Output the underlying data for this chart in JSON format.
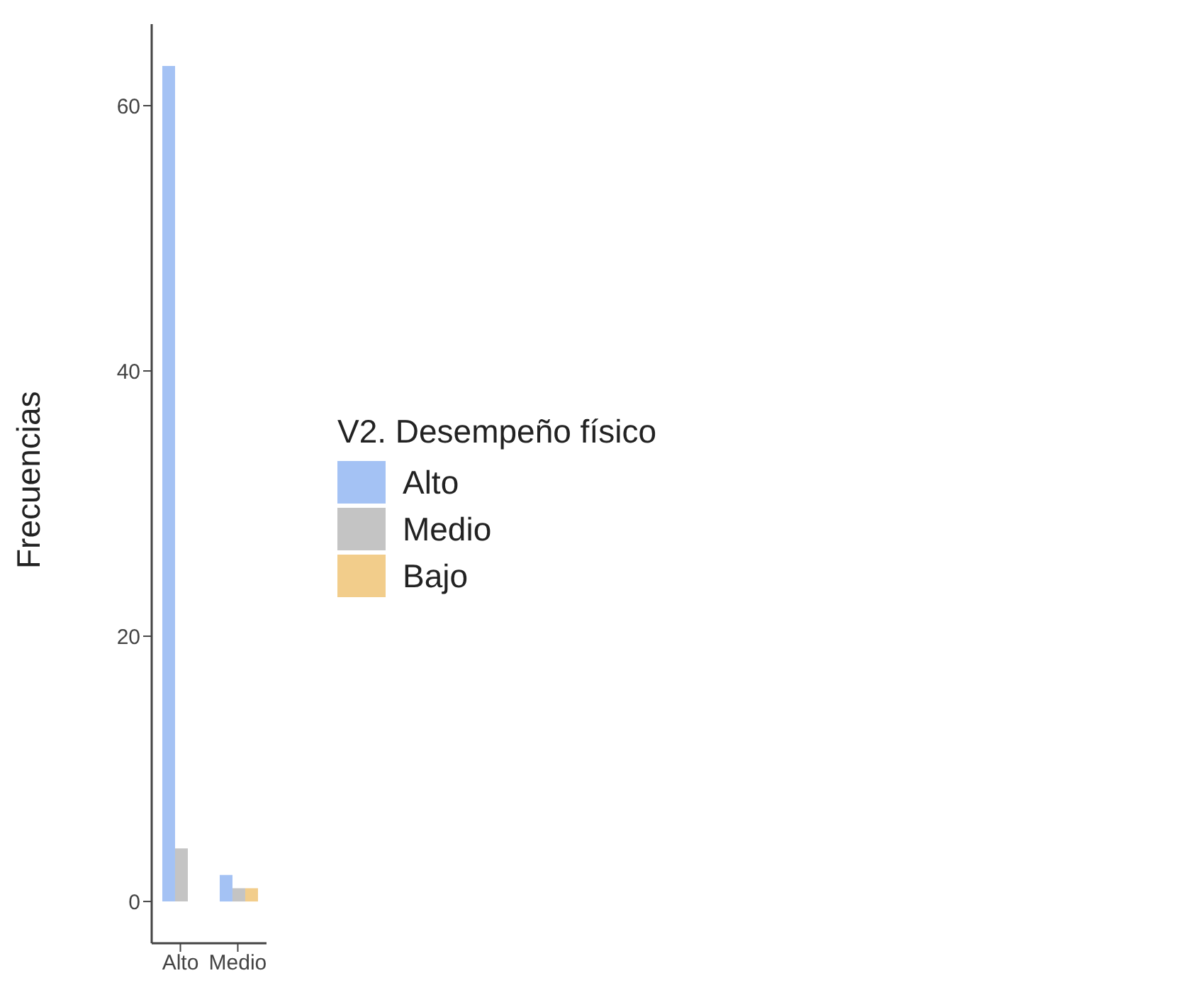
{
  "chart_data": {
    "type": "bar",
    "ylabel": "Frecuencias",
    "legend_title": "V2.  Desempeño físico",
    "categories": [
      "Alto",
      "Medio"
    ],
    "series": [
      {
        "name": "Alto",
        "color": "#a4c2f4",
        "values": [
          63,
          2
        ]
      },
      {
        "name": "Medio",
        "color": "#c4c4c4",
        "values": [
          4,
          1
        ]
      },
      {
        "name": "Bajo",
        "color": "#f2cd8b",
        "values": [
          null,
          1
        ]
      }
    ],
    "ylim": [
      -3.15,
      66.15
    ],
    "yticks": [
      0,
      20,
      40,
      60
    ],
    "grid": false,
    "legend": "right"
  }
}
